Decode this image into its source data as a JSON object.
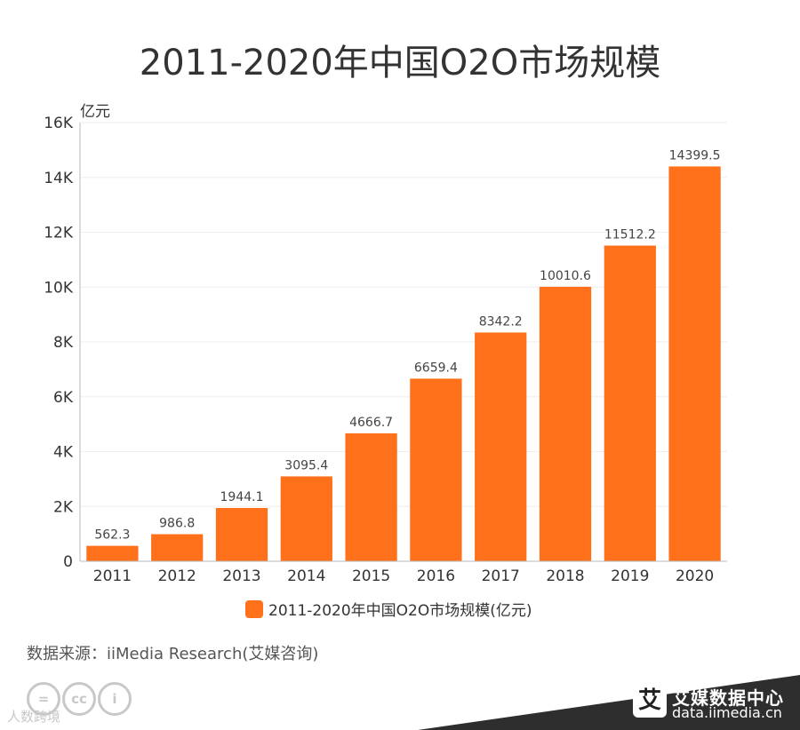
{
  "title": "2011-2020年中国O2O市场规模",
  "chart_data": {
    "type": "bar",
    "title": "2011-2020年中国O2O市场规模",
    "ylabel": "亿元",
    "xlabel": "",
    "categories": [
      "2011",
      "2012",
      "2013",
      "2014",
      "2015",
      "2016",
      "2017",
      "2018",
      "2019",
      "2020"
    ],
    "series": [
      {
        "name": "2011-2020年中国O2O市场规模(亿元)",
        "values": [
          562.3,
          986.8,
          1944.1,
          3095.4,
          4666.7,
          6659.4,
          8342.2,
          10010.6,
          11512.2,
          14399.5
        ],
        "color": "#fe7019"
      }
    ],
    "ylim": [
      0,
      16000
    ],
    "yticks": [
      0,
      2000,
      4000,
      6000,
      8000,
      10000,
      12000,
      14000,
      16000
    ],
    "ytick_labels": [
      "0",
      "2K",
      "4K",
      "6K",
      "8K",
      "10K",
      "12K",
      "14K",
      "16K"
    ],
    "grid": true,
    "legend": "bottom-center"
  },
  "source": "数据来源：iiMedia Research(艾媒咨询)",
  "brand": {
    "mark": "艾",
    "name": "艾媒数据中心",
    "url": "data.iimedia.cn"
  },
  "watermark": "人数跨境",
  "cc_icons": [
    "=",
    "cc",
    "i"
  ],
  "colors": {
    "bar": "#fe7019",
    "footer_band": "#2e2e2e",
    "grid": "#eeeeee",
    "axis": "#bbbbbb"
  }
}
